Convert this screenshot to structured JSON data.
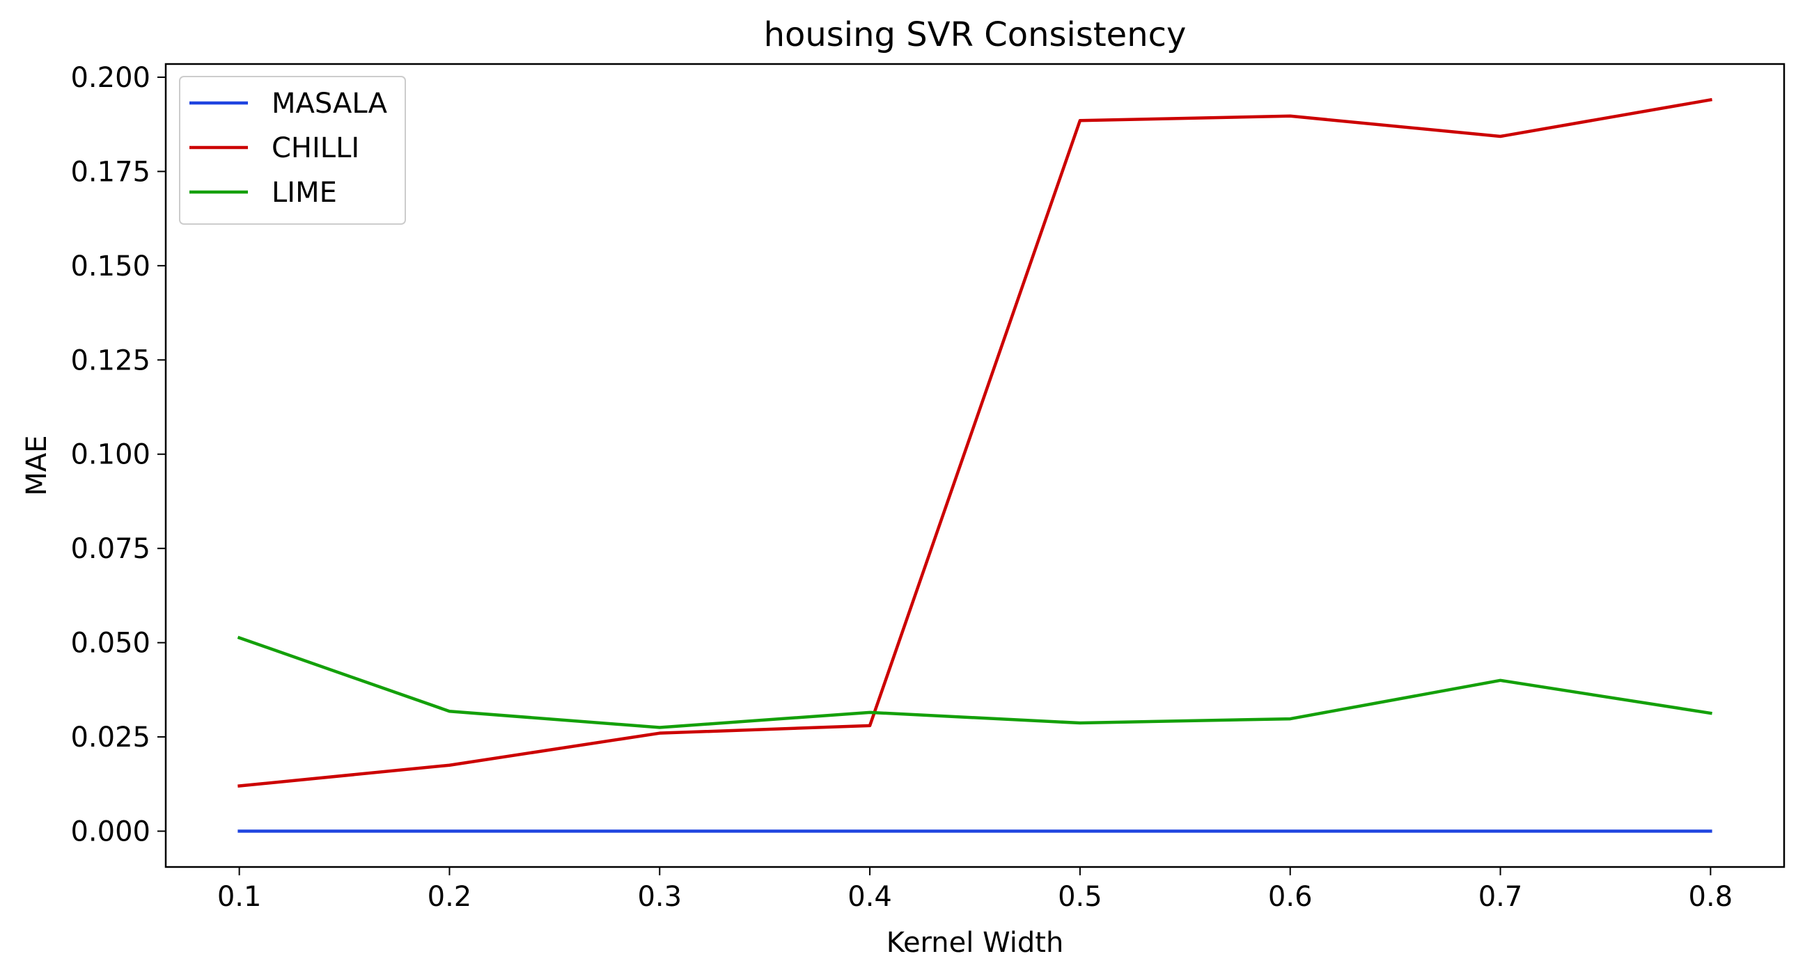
{
  "chart_data": {
    "type": "line",
    "title": "housing SVR Consistency",
    "xlabel": "Kernel Width",
    "ylabel": "MAE",
    "x": [
      0.1,
      0.2,
      0.3,
      0.4,
      0.5,
      0.6,
      0.7,
      0.8
    ],
    "x_tick_labels": [
      "0.1",
      "0.2",
      "0.3",
      "0.4",
      "0.5",
      "0.6",
      "0.7",
      "0.8"
    ],
    "y_ticks": [
      0.0,
      0.025,
      0.05,
      0.075,
      0.1,
      0.125,
      0.15,
      0.175,
      0.2
    ],
    "y_tick_labels": [
      "0.000",
      "0.025",
      "0.050",
      "0.075",
      "0.100",
      "0.125",
      "0.150",
      "0.175",
      "0.200"
    ],
    "xlim": [
      0.065,
      0.835
    ],
    "ylim": [
      -0.0095,
      0.2035
    ],
    "grid": false,
    "legend_position": "top-left",
    "series": [
      {
        "name": "MASALA",
        "color": "#1f44e0",
        "values": [
          0.0,
          0.0,
          0.0,
          0.0,
          0.0,
          0.0,
          0.0,
          0.0
        ]
      },
      {
        "name": "CHILLI",
        "color": "#cc0000",
        "values": [
          0.012,
          0.0175,
          0.026,
          0.028,
          0.1885,
          0.1897,
          0.1843,
          0.194
        ]
      },
      {
        "name": "LIME",
        "color": "#14a00a",
        "values": [
          0.0513,
          0.0318,
          0.0275,
          0.0315,
          0.0287,
          0.0298,
          0.04,
          0.0313
        ]
      }
    ]
  }
}
